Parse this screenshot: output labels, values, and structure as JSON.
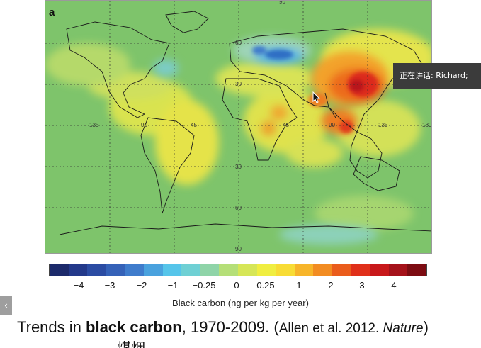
{
  "figure": {
    "panel_letter": "a",
    "top_tick": "90",
    "longitude_labels": [
      "135",
      "90",
      "45",
      "45",
      "90",
      "135",
      "180"
    ],
    "latitude_labels": [
      "60",
      "30",
      "30",
      "60",
      "90"
    ]
  },
  "tooltip": {
    "text": "正在讲话: Richard;"
  },
  "colorbar": {
    "colors": [
      "#1c2a6b",
      "#23398a",
      "#2b4ca3",
      "#3562b8",
      "#3f7ccc",
      "#4aa2de",
      "#56c5ea",
      "#6fd0d4",
      "#8fd4a8",
      "#b5df78",
      "#d6e657",
      "#f0ee41",
      "#f8dc35",
      "#f7b52a",
      "#f28c22",
      "#ea5c1c",
      "#e0301a",
      "#c8181a",
      "#a5121a",
      "#7d0c12"
    ],
    "tick_labels": [
      "−4",
      "−3",
      "−2",
      "−1",
      "−0.25",
      "0",
      "0.25",
      "1",
      "2",
      "3",
      "4"
    ],
    "title": "Black carbon (ng per kg per year)"
  },
  "caption": {
    "part1": "Trends in ",
    "bold": "black carbon",
    "part2": ", 1970-2009. (",
    "citation": "Allen et al. 2012. ",
    "journal": "Nature",
    "close": ")",
    "cut_text": "煤烟"
  },
  "side_tab": {
    "glyph": "‹"
  }
}
